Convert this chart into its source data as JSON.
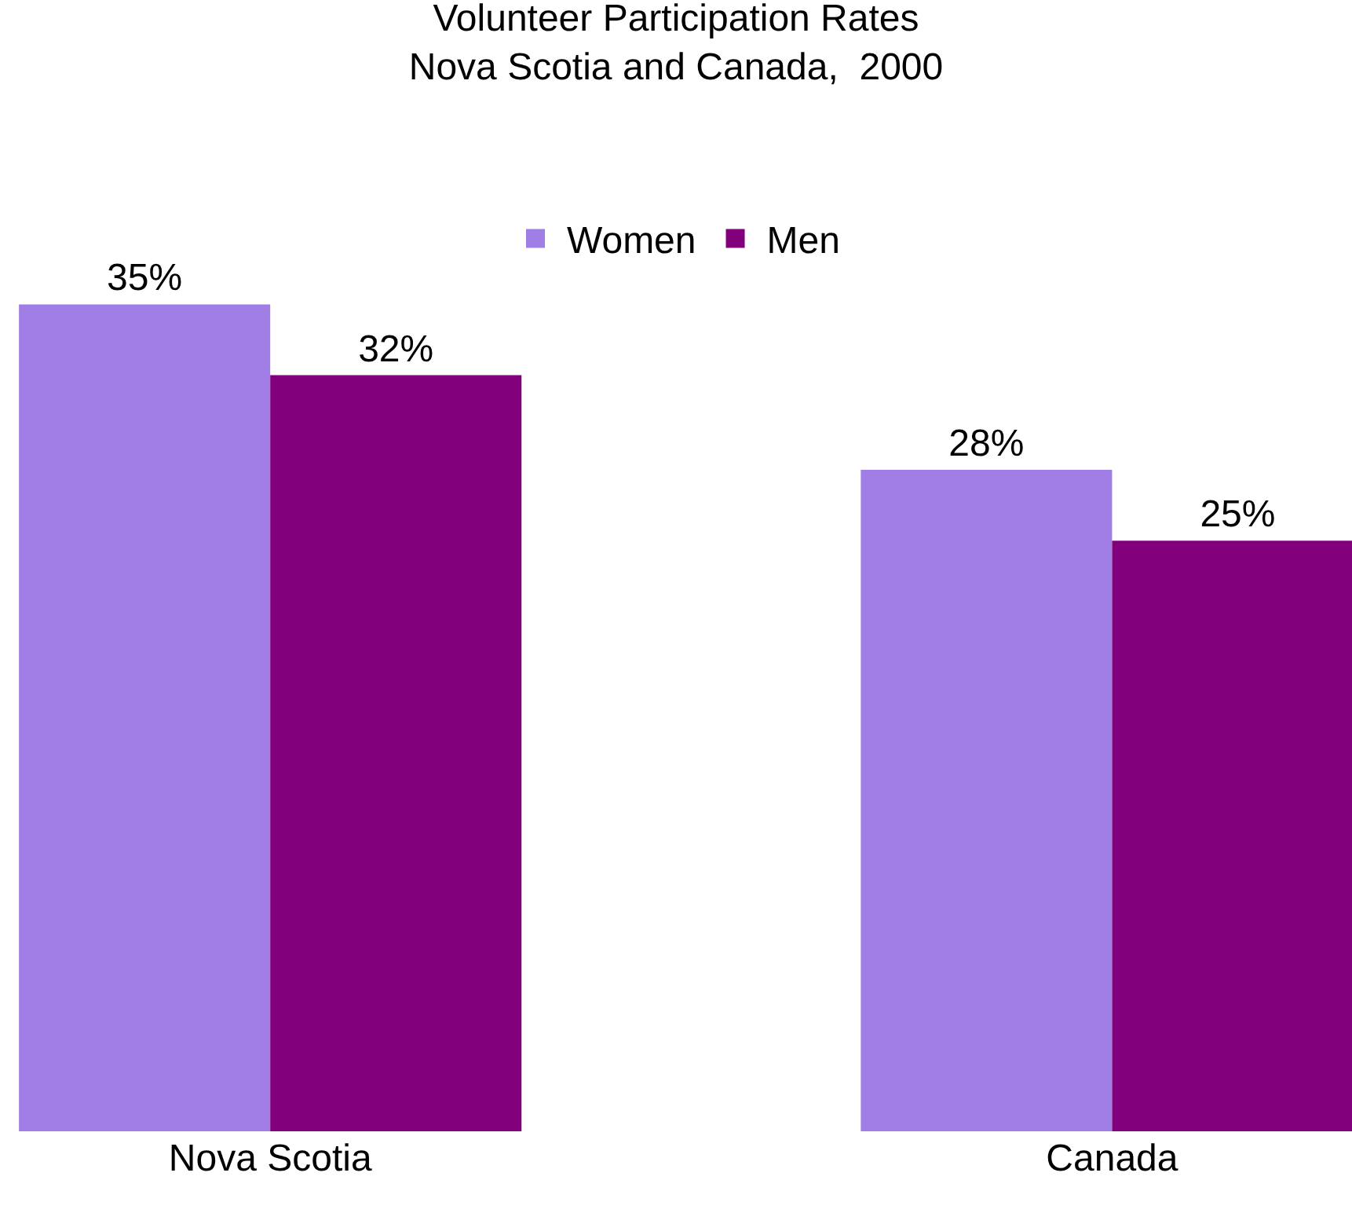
{
  "chart_data": {
    "type": "bar",
    "title": "Volunteer Participation Rates\nNova Scotia and Canada,  2000",
    "categories": [
      "Nova Scotia",
      "Canada"
    ],
    "series": [
      {
        "name": "Women",
        "color": "#a07ee6",
        "values": [
          35,
          28
        ],
        "value_labels": [
          "35%",
          "28%"
        ]
      },
      {
        "name": "Men",
        "color": "#82007c",
        "values": [
          32,
          25
        ],
        "value_labels": [
          "32%",
          "25%"
        ]
      }
    ],
    "tick_labels": "x",
    "legend": "top"
  }
}
